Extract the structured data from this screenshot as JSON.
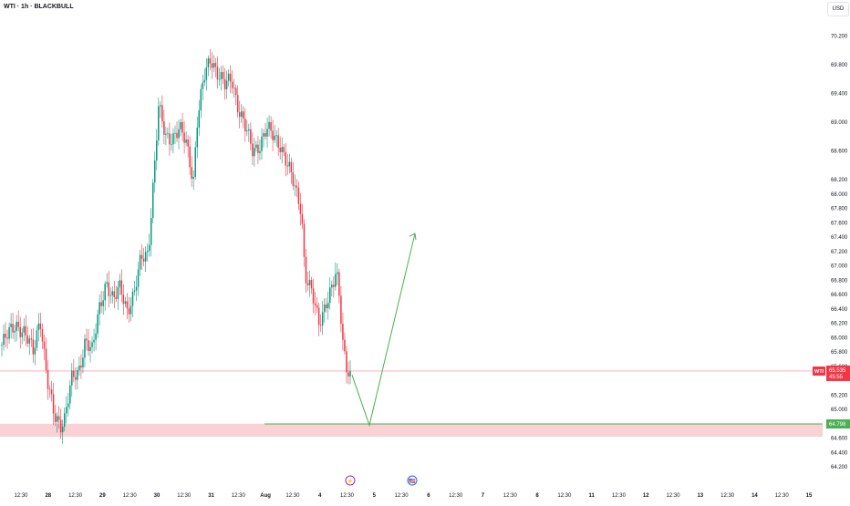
{
  "header": {
    "symbol": "WTI · 1h · BLACKBULL",
    "currency": "USD"
  },
  "colors": {
    "up": "#089981",
    "down": "#f23645",
    "support_zone": "#f9c9cc",
    "support_line": "#4caf50",
    "projection": "#4caf50"
  },
  "price_axis": {
    "ticks": [
      "70.200",
      "69.800",
      "69.400",
      "69.000",
      "68.600",
      "68.200",
      "68.000",
      "67.800",
      "67.600",
      "67.400",
      "67.200",
      "67.000",
      "66.800",
      "66.600",
      "66.400",
      "66.200",
      "66.000",
      "65.800",
      "65.600",
      "65.200",
      "65.000",
      "64.600",
      "64.400",
      "64.200"
    ],
    "tick_values": [
      70.2,
      69.8,
      69.4,
      69.0,
      68.6,
      68.2,
      68.0,
      67.8,
      67.6,
      67.4,
      67.2,
      67.0,
      66.8,
      66.6,
      66.4,
      66.2,
      66.0,
      65.8,
      65.6,
      65.2,
      65.0,
      64.6,
      64.4,
      64.2
    ]
  },
  "time_axis": {
    "labels": [
      "12:30",
      "28",
      "12:30",
      "29",
      "12:30",
      "30",
      "12:30",
      "31",
      "12:30",
      "Aug",
      "12:30",
      "4",
      "12:30",
      "5",
      "12:30",
      "6",
      "12:30",
      "7",
      "12:30",
      "8",
      "12:30",
      "11",
      "12:30",
      "12",
      "12:30",
      "13",
      "12:30",
      "14",
      "12:30",
      "15"
    ],
    "bold": [
      "28",
      "29",
      "30",
      "31",
      "Aug",
      "4",
      "5",
      "6",
      "7",
      "8",
      "11",
      "12",
      "13",
      "14",
      "15"
    ]
  },
  "events": [
    {
      "label": "⚡",
      "color": "#9c27b0"
    },
    {
      "label": "🇺🇸",
      "color": "#2962ff"
    }
  ],
  "labels": {
    "current": {
      "tag": "WTI",
      "price": "65.535",
      "countdown": "45:55"
    },
    "support": {
      "price": "64.798"
    }
  },
  "chart_data": {
    "type": "candlestick",
    "title": "WTI · 1h · BLACKBULL",
    "xlabel": "",
    "ylabel": "",
    "ylim": [
      64.15,
      70.45
    ],
    "current_price": 65.535,
    "support_zone": [
      64.62,
      64.8
    ],
    "support_level": 64.798,
    "projection": {
      "points": [
        [
          66.1,
          65.48
        ],
        [
          66.3,
          64.78
        ],
        [
          67.1,
          67.45
        ]
      ],
      "note": "arrow"
    },
    "candle_anchors": [
      [
        0,
        65.9
      ],
      [
        4,
        66.2
      ],
      [
        6,
        66.1
      ],
      [
        9,
        65.8
      ],
      [
        11,
        66.3
      ],
      [
        13,
        65.4
      ],
      [
        15,
        64.9
      ],
      [
        17,
        64.8
      ],
      [
        18,
        64.9
      ],
      [
        20,
        65.4
      ],
      [
        22,
        65.5
      ],
      [
        24,
        66.0
      ],
      [
        26,
        65.8
      ],
      [
        28,
        66.4
      ],
      [
        30,
        66.8
      ],
      [
        32,
        66.5
      ],
      [
        34,
        66.7
      ],
      [
        36,
        66.4
      ],
      [
        38,
        66.6
      ],
      [
        40,
        67.1
      ],
      [
        42,
        67.2
      ],
      [
        44,
        68.5
      ],
      [
        45,
        69.2
      ],
      [
        47,
        68.8
      ],
      [
        49,
        68.8
      ],
      [
        51,
        68.9
      ],
      [
        53,
        68.7
      ],
      [
        55,
        68.2
      ],
      [
        56,
        69.0
      ],
      [
        58,
        69.6
      ],
      [
        60,
        69.9
      ],
      [
        62,
        69.7
      ],
      [
        64,
        69.5
      ],
      [
        66,
        69.6
      ],
      [
        68,
        69.2
      ],
      [
        70,
        68.9
      ],
      [
        72,
        68.6
      ],
      [
        74,
        68.7
      ],
      [
        76,
        68.9
      ],
      [
        78,
        68.8
      ],
      [
        80,
        68.7
      ],
      [
        82,
        68.4
      ],
      [
        84,
        68.1
      ],
      [
        86,
        67.8
      ],
      [
        87,
        66.9
      ],
      [
        89,
        66.6
      ],
      [
        91,
        66.2
      ],
      [
        93,
        66.5
      ],
      [
        95,
        66.7
      ],
      [
        96,
        66.9
      ],
      [
        97,
        66.5
      ],
      [
        98,
        65.9
      ],
      [
        99,
        65.6
      ],
      [
        100,
        65.53
      ]
    ]
  }
}
